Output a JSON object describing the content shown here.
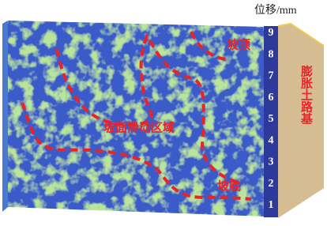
{
  "colorbar": {
    "title": "位移/mm",
    "ticks": [
      "1",
      "2",
      "3",
      "4",
      "5",
      "6",
      "7",
      "8",
      "9"
    ]
  },
  "labels": {
    "top": "坡顶",
    "sliding_zone": "坡面滑动区域",
    "bottom": "坡底",
    "subgrade": "膨胀土路基"
  }
}
